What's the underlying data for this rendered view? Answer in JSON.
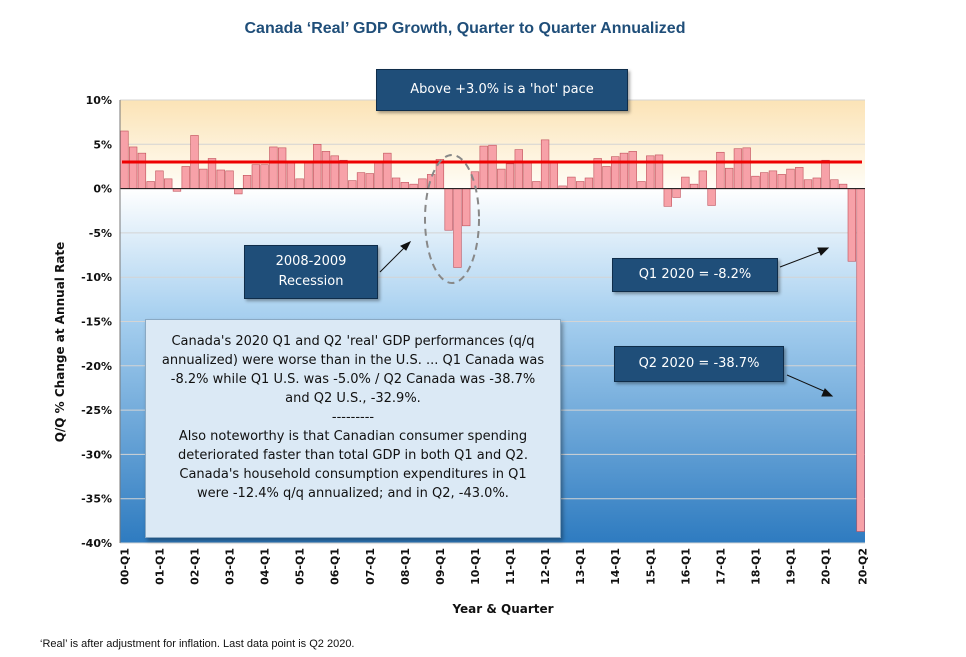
{
  "title": "Canada ‘Real’ GDP Growth, Quarter to Quarter Annualized",
  "footnote": "‘Real’ is after adjustment for inflation. Last data point is Q2 2020.",
  "callouts": {
    "hot_pace": "Above +3.0% is a 'hot' pace",
    "recession": [
      "2008-2009",
      "Recession"
    ],
    "q1_2020": "Q1 2020 = -8.2%",
    "q2_2020": "Q2 2020 = -38.7%"
  },
  "note": {
    "lines": [
      "Canada's 2020 Q1 and Q2 'real' GDP performances (q/q",
      "annualized) were worse than in the U.S. ... Q1 Canada was",
      "-8.2% while Q1 U.S. was -5.0% / Q2 Canada was -38.7%",
      "and Q2 U.S., -32.9%.",
      "---------",
      "Also noteworthy is that Canadian consumer spending",
      "deteriorated faster than total GDP in both Q1 and Q2.",
      "Canada's household consumption expenditures in Q1",
      "were -12.4% q/q annualized; and in Q2, -43.0%."
    ]
  },
  "colors": {
    "bar_fill": "#f7a1a8",
    "bar_stroke": "#c0505a",
    "threshold_line": "#ee0000",
    "callout_bg": "#1f4e79",
    "title": "#1f4e79"
  },
  "chart_data": {
    "type": "bar",
    "xlabel": "Year & Quarter",
    "ylabel": "Q/Q % Change at Annual Rate",
    "ylim": [
      -40,
      10
    ],
    "yticks": [
      "10%",
      "5%",
      "0%",
      "-5%",
      "-10%",
      "-15%",
      "-20%",
      "-25%",
      "-30%",
      "-35%",
      "-40%"
    ],
    "xticks": [
      "00-Q1",
      "01-Q1",
      "02-Q1",
      "03-Q1",
      "04-Q1",
      "05-Q1",
      "06-Q1",
      "07-Q1",
      "08-Q1",
      "09-Q1",
      "10-Q1",
      "11-Q1",
      "12-Q1",
      "13-Q1",
      "14-Q1",
      "15-Q1",
      "16-Q1",
      "17-Q1",
      "18-Q1",
      "19-Q1",
      "20-Q1",
      "20-Q2"
    ],
    "threshold": 3.0,
    "grid": true,
    "values": [
      6.5,
      4.7,
      4.0,
      0.8,
      2.0,
      1.1,
      -0.3,
      2.5,
      6.0,
      2.2,
      3.4,
      2.1,
      2.0,
      -0.6,
      1.5,
      2.7,
      2.7,
      4.7,
      4.6,
      3.0,
      1.1,
      3.0,
      5.0,
      4.2,
      3.7,
      3.2,
      0.9,
      1.8,
      1.7,
      3.0,
      4.0,
      1.2,
      0.7,
      0.5,
      1.1,
      1.6,
      3.3,
      -4.7,
      -8.9,
      -4.2,
      1.9,
      4.8,
      4.9,
      2.2,
      2.8,
      4.4,
      3.0,
      0.8,
      5.5,
      3.0,
      0.3,
      1.3,
      0.8,
      1.2,
      3.4,
      2.5,
      3.6,
      4.0,
      4.2,
      0.8,
      3.7,
      3.8,
      -2.0,
      -1.0,
      1.3,
      0.5,
      2.0,
      -1.9,
      4.1,
      2.3,
      4.5,
      4.6,
      1.4,
      1.8,
      2.0,
      1.6,
      2.2,
      2.4,
      1.0,
      1.2,
      3.2,
      1.0,
      0.5,
      -8.2,
      -38.7
    ]
  }
}
